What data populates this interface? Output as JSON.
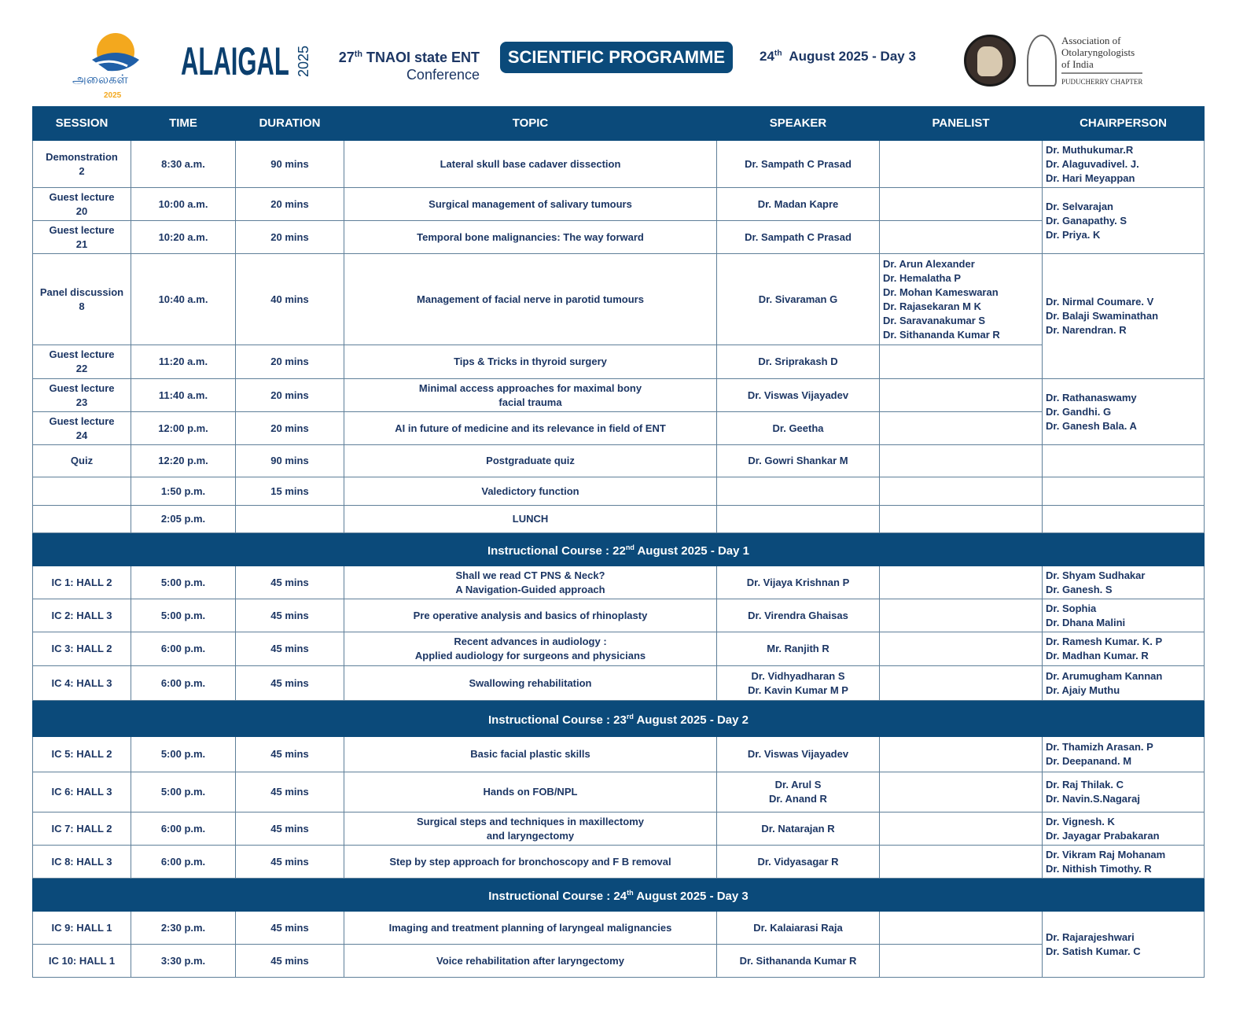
{
  "header": {
    "logo_text": "அலைகள்",
    "logo_year": "2025",
    "brand": "ALAIGAL",
    "brand_year": "2025",
    "conference": {
      "num": "27",
      "sup": "th",
      "line1": " TNAOI state ENT",
      "line2": "Conference"
    },
    "programme": "SCIENTIFIC PROGRAMME",
    "date": {
      "num": "24",
      "sup": "th",
      "rest": "  August 2025 - Day 3"
    },
    "association": {
      "line1": "Association of",
      "line2": "Otolaryngologists",
      "line3": "of India",
      "chapter": "PUDUCHERRY CHAPTER"
    }
  },
  "columns": [
    "SESSION",
    "TIME",
    "DURATION",
    "TOPIC",
    "SPEAKER",
    "PANELIST",
    "CHAIRPERSON"
  ],
  "colors": {
    "primary": "#0b4a7a",
    "text": "#1c3664"
  },
  "rows": [
    {
      "h": 60,
      "session": "Demonstration\n2",
      "time": "8:30 a.m.",
      "duration": "90 mins",
      "topic": "Lateral skull base cadaver dissection",
      "speaker": "Dr. Sampath C Prasad",
      "panelist": "",
      "chair": {
        "span": 1,
        "text": "Dr. Muthukumar.R\nDr. Alaguvadivel. J.\nDr. Hari Meyappan"
      }
    },
    {
      "h": 42,
      "session": "Guest lecture\n20",
      "time": "10:00 a.m.",
      "duration": "20 mins",
      "topic": "Surgical management of salivary tumours",
      "speaker": "Dr. Madan Kapre",
      "panelist": "",
      "chair": {
        "span": 2,
        "text": "Dr. Selvarajan\nDr. Ganapathy. S\nDr. Priya. K"
      }
    },
    {
      "h": 42,
      "session": "Guest lecture\n21",
      "time": "10:20 a.m.",
      "duration": "20 mins",
      "topic": "Temporal bone malignancies: The way forward",
      "speaker": "Dr. Sampath C Prasad",
      "panelist": ""
    },
    {
      "h": 116,
      "session": "Panel discussion\n8",
      "time": "10:40 a.m.",
      "duration": "40 mins",
      "topic": "Management of facial nerve in parotid tumours",
      "speaker": "Dr. Sivaraman G",
      "panelist": "Dr. Arun Alexander\nDr. Hemalatha P\nDr. Mohan Kameswaran\nDr. Rajasekaran M K\nDr. Saravanakumar S\nDr. Sithananda Kumar R",
      "chair": {
        "span": 2,
        "text": "Dr. Nirmal Coumare. V\nDr. Balaji Swaminathan\nDr. Narendran. R"
      }
    },
    {
      "h": 43,
      "session": "Guest lecture\n22",
      "time": "11:20 a.m.",
      "duration": "20 mins",
      "topic": "Tips & Tricks in thyroid surgery",
      "speaker": "Dr. Sriprakash D",
      "panelist": ""
    },
    {
      "h": 42,
      "session": "Guest lecture\n23",
      "time": "11:40 a.m.",
      "duration": "20 mins",
      "topic": "Minimal access approaches for maximal bony\nfacial trauma",
      "speaker": "Dr. Viswas Vijayadev",
      "panelist": "",
      "chair": {
        "span": 2,
        "text": "Dr. Rathanaswamy\nDr. Gandhi. G\nDr. Ganesh Bala. A"
      }
    },
    {
      "h": 42,
      "session": "Guest lecture\n24",
      "time": "12:00 p.m.",
      "duration": "20 mins",
      "topic": "AI in future of medicine and its relevance in field of ENT",
      "speaker": "Dr. Geetha",
      "panelist": ""
    },
    {
      "h": 41,
      "session": "Quiz",
      "time": "12:20 p.m.",
      "duration": "90 mins",
      "topic": "Postgraduate quiz",
      "speaker": "Dr. Gowri Shankar M",
      "panelist": "",
      "chair": {
        "span": 1,
        "text": ""
      }
    },
    {
      "h": 36,
      "session": "",
      "time": "1:50 p.m.",
      "duration": "15 mins",
      "topic": "Valedictory function",
      "speaker": "",
      "panelist": "",
      "chair": {
        "span": 1,
        "text": ""
      }
    },
    {
      "h": 35,
      "session": "",
      "time": "2:05 p.m.",
      "duration": "",
      "topic": "LUNCH",
      "speaker": "",
      "panelist": "",
      "chair": {
        "span": 1,
        "text": ""
      }
    },
    {
      "band": true,
      "h": 42,
      "pre": "Instructional Course : 22",
      "sup": "nd",
      "post": " August 2025 - Day 1"
    },
    {
      "h": 42,
      "session": "IC 1: HALL 2",
      "time": "5:00 p.m.",
      "duration": "45 mins",
      "topic": "Shall we read CT PNS & Neck?\nA Navigation-Guided approach",
      "speaker": "Dr. Vijaya Krishnan P",
      "panelist": "",
      "chair": {
        "span": 1,
        "text": "Dr. Shyam Sudhakar\nDr. Ganesh. S"
      }
    },
    {
      "h": 42,
      "session": "IC 2: HALL 3",
      "time": "5:00 p.m.",
      "duration": "45 mins",
      "topic": "Pre operative analysis and basics of rhinoplasty",
      "speaker": "Dr. Virendra Ghaisas",
      "panelist": "",
      "chair": {
        "span": 1,
        "text": "Dr. Sophia\nDr. Dhana Malini"
      }
    },
    {
      "h": 43,
      "session": "IC 3: HALL 2",
      "time": "6:00 p.m.",
      "duration": "45 mins",
      "topic": "Recent advances in audiology :\nApplied audiology for surgeons and physicians",
      "speaker": "Mr. Ranjith R",
      "panelist": "",
      "chair": {
        "span": 1,
        "text": "Dr. Ramesh Kumar. K. P\nDr. Madhan Kumar. R"
      }
    },
    {
      "h": 44,
      "session": "IC 4: HALL 3",
      "time": "6:00 p.m.",
      "duration": "45 mins",
      "topic": "Swallowing rehabilitation",
      "speaker": "Dr. Vidhyadharan S\nDr. Kavin Kumar M P",
      "panelist": "",
      "chair": {
        "span": 1,
        "text": "Dr. Arumugham Kannan\nDr. Ajaiy Muthu"
      }
    },
    {
      "band": true,
      "h": 46,
      "pre": "Instructional Course : 23",
      "sup": "rd",
      "post": " August 2025 - Day 2"
    },
    {
      "h": 45,
      "session": "IC 5: HALL 2",
      "time": "5:00 p.m.",
      "duration": "45 mins",
      "topic": "Basic facial plastic skills",
      "speaker": "Dr. Viswas Vijayadev",
      "panelist": "",
      "chair": {
        "span": 1,
        "text": "Dr. Thamizh Arasan. P\nDr. Deepanand. M"
      }
    },
    {
      "h": 51,
      "session": "IC 6: HALL 3",
      "time": "5:00 p.m.",
      "duration": "45 mins",
      "topic": "Hands on FOB/NPL",
      "speaker": "Dr. Arul S\nDr. Anand R",
      "panelist": "",
      "chair": {
        "span": 1,
        "text": "Dr. Raj Thilak. C\nDr. Navin.S.Nagaraj"
      }
    },
    {
      "h": 42,
      "session": "IC 7: HALL 2",
      "time": "6:00 p.m.",
      "duration": "45 mins",
      "topic": "Surgical steps and techniques in maxillectomy\nand laryngectomy",
      "speaker": "Dr. Natarajan R",
      "panelist": "",
      "chair": {
        "span": 1,
        "text": "Dr. Vignesh. K\nDr. Jayagar Prabakaran"
      }
    },
    {
      "h": 42,
      "session": "IC 8: HALL 3",
      "time": "6:00 p.m.",
      "duration": "45 mins",
      "topic": "Step by step approach for bronchoscopy and F B removal",
      "speaker": "Dr. Vidyasagar R",
      "panelist": "",
      "chair": {
        "span": 1,
        "text": "Dr. Vikram Raj Mohanam\nDr. Nithish Timothy. R"
      }
    },
    {
      "band": true,
      "h": 42,
      "pre": "Instructional Course : 24",
      "sup": "th",
      "post": " August 2025 - Day 3"
    },
    {
      "h": 42,
      "session": "IC 9: HALL 1",
      "time": "2:30 p.m.",
      "duration": "45 mins",
      "topic": "Imaging and treatment planning of laryngeal malignancies",
      "speaker": "Dr. Kalaiarasi Raja",
      "panelist": "",
      "chair": {
        "span": 2,
        "text": "Dr. Rajarajeshwari\nDr. Satish Kumar. C"
      }
    },
    {
      "h": 42,
      "session": "IC 10: HALL 1",
      "time": "3:30 p.m.",
      "duration": "45 mins",
      "topic": "Voice rehabilitation after laryngectomy",
      "speaker": "Dr. Sithananda Kumar R",
      "panelist": ""
    }
  ]
}
